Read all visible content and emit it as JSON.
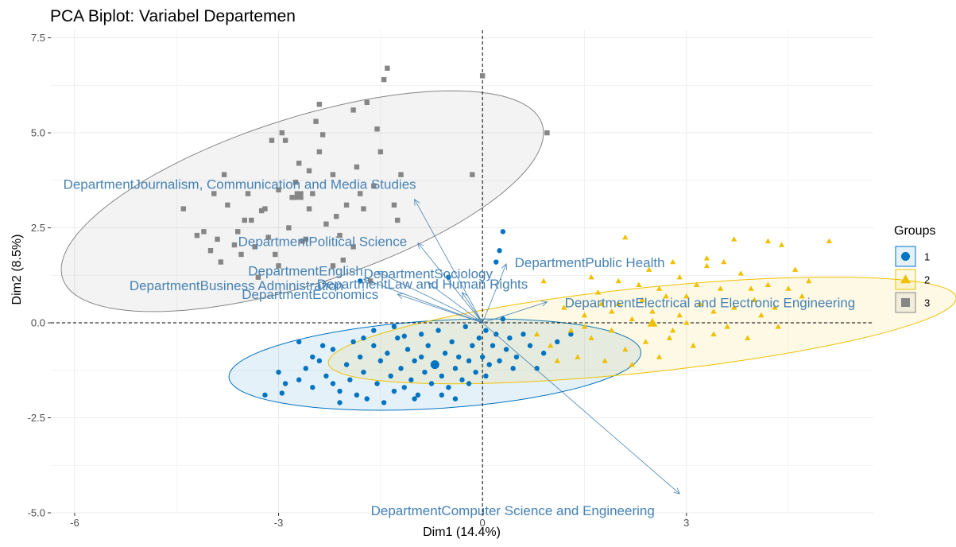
{
  "chart_data": {
    "type": "scatter",
    "title": "PCA Biplot: Variabel Departemen",
    "xlabel": "Dim1 (14.4%)",
    "ylabel": "Dim2 (8.5%)",
    "xlim": [
      -6.35,
      5.75
    ],
    "ylim": [
      -5.0,
      7.7
    ],
    "x_ticks": [
      -6,
      -3,
      0,
      3
    ],
    "x_tick_labels": [
      "-6",
      "-3",
      "0",
      "3"
    ],
    "y_ticks": [
      -5,
      -2.5,
      0,
      2.5,
      5,
      7.5
    ],
    "y_tick_labels": [
      "-5.0",
      "-2.5",
      "0.0",
      "2.5",
      "5.0",
      "7.5"
    ],
    "grid": true,
    "legend": {
      "title": "Groups",
      "position": "right",
      "entries": [
        {
          "label": "1",
          "shape": "circle",
          "color": "#0073c2"
        },
        {
          "label": "2",
          "shape": "triangle",
          "color": "#efc000"
        },
        {
          "label": "3",
          "shape": "square",
          "color": "#868686"
        }
      ]
    },
    "series": [
      {
        "name": "1",
        "color": "#0073c2",
        "shape": "circle",
        "centroid": [
          -0.7,
          -1.1
        ],
        "ellipse": {
          "cx": -0.7,
          "cy": -1.1,
          "rx": 3.05,
          "ry": 1.15,
          "angle_deg": 7
        },
        "points": [
          [
            -3.2,
            -1.9
          ],
          [
            -2.95,
            -1.85
          ],
          [
            -2.9,
            -1.6
          ],
          [
            -2.7,
            -1.5
          ],
          [
            -2.6,
            -1.2
          ],
          [
            -2.5,
            -1.7
          ],
          [
            -2.4,
            -1.0
          ],
          [
            -2.3,
            -1.4
          ],
          [
            -2.2,
            -0.7
          ],
          [
            -2.1,
            -1.8
          ],
          [
            -2.0,
            -1.1
          ],
          [
            -1.95,
            -1.5
          ],
          [
            -1.9,
            -0.5
          ],
          [
            -1.85,
            -1.9
          ],
          [
            -1.8,
            -0.9
          ],
          [
            -1.75,
            -1.3
          ],
          [
            -1.7,
            -2.0
          ],
          [
            -1.6,
            -0.6
          ],
          [
            -1.55,
            -1.6
          ],
          [
            -1.5,
            -1.0
          ],
          [
            -1.45,
            -2.1
          ],
          [
            -1.4,
            -0.8
          ],
          [
            -1.35,
            -1.4
          ],
          [
            -1.3,
            -1.8
          ],
          [
            -1.25,
            -0.4
          ],
          [
            -1.2,
            -1.2
          ],
          [
            -1.15,
            -1.7
          ],
          [
            -1.1,
            -0.7
          ],
          [
            -1.05,
            -1.5
          ],
          [
            -1.0,
            -1.0
          ],
          [
            -0.95,
            -1.9
          ],
          [
            -0.9,
            -0.3
          ],
          [
            -0.85,
            -1.3
          ],
          [
            -0.8,
            -0.6
          ],
          [
            -0.75,
            -1.6
          ],
          [
            -0.7,
            -1.1
          ],
          [
            -0.65,
            -0.2
          ],
          [
            -0.6,
            -1.4
          ],
          [
            -0.55,
            -0.8
          ],
          [
            -0.5,
            -1.7
          ],
          [
            -0.45,
            -0.5
          ],
          [
            -0.4,
            -1.2
          ],
          [
            -0.35,
            -0.9
          ],
          [
            -0.3,
            -1.5
          ],
          [
            -0.25,
            -0.1
          ],
          [
            -0.2,
            -1.0
          ],
          [
            -0.15,
            -0.6
          ],
          [
            -0.1,
            -1.3
          ],
          [
            -0.05,
            -0.4
          ],
          [
            0.0,
            -0.9
          ],
          [
            0.05,
            -0.2
          ],
          [
            0.1,
            -1.1
          ],
          [
            0.15,
            -0.6
          ],
          [
            0.2,
            -0.3
          ],
          [
            0.25,
            -1.0
          ],
          [
            0.3,
            0.1
          ],
          [
            0.35,
            -0.7
          ],
          [
            0.4,
            -0.4
          ],
          [
            0.5,
            -0.9
          ],
          [
            0.6,
            -0.3
          ],
          [
            0.7,
            -0.6
          ],
          [
            0.8,
            -1.2
          ],
          [
            0.9,
            -0.8
          ],
          [
            1.1,
            -0.5
          ],
          [
            1.3,
            -0.3
          ],
          [
            0.3,
            2.4
          ],
          [
            0.25,
            1.9
          ],
          [
            0.2,
            1.6
          ],
          [
            -0.5,
            1.2
          ],
          [
            -1.8,
            1.1
          ],
          [
            -2.1,
            -2.1
          ],
          [
            -2.5,
            -0.9
          ],
          [
            -2.7,
            -0.5
          ],
          [
            -1.6,
            -0.2
          ],
          [
            -1.3,
            -0.1
          ],
          [
            -0.9,
            -0.9
          ],
          [
            -0.6,
            -1.9
          ],
          [
            -0.4,
            -2.0
          ],
          [
            -1.0,
            -2.0
          ],
          [
            -2.2,
            -1.6
          ],
          [
            -0.2,
            -1.6
          ],
          [
            0.05,
            -1.4
          ],
          [
            -1.75,
            -0.4
          ],
          [
            -2.35,
            -0.6
          ],
          [
            -3.0,
            -1.3
          ],
          [
            -1.15,
            -0.35
          ],
          [
            0.45,
            -1.2
          ]
        ]
      },
      {
        "name": "2",
        "color": "#efc000",
        "shape": "triangle",
        "centroid": [
          2.5,
          0.0
        ],
        "ellipse": {
          "cx": 2.35,
          "cy": -0.2,
          "rx": 4.7,
          "ry": 1.1,
          "angle_deg": 11
        },
        "points": [
          [
            0.8,
            -0.3
          ],
          [
            1.0,
            -0.6
          ],
          [
            1.2,
            0.4
          ],
          [
            1.4,
            -0.9
          ],
          [
            1.5,
            0.2
          ],
          [
            1.6,
            -0.4
          ],
          [
            1.7,
            0.8
          ],
          [
            1.8,
            -1.0
          ],
          [
            1.9,
            -0.2
          ],
          [
            2.0,
            0.5
          ],
          [
            2.1,
            -0.7
          ],
          [
            2.2,
            0.1
          ],
          [
            2.3,
            1.0
          ],
          [
            2.4,
            -0.5
          ],
          [
            2.5,
            0.3
          ],
          [
            2.6,
            -0.9
          ],
          [
            2.7,
            0.7
          ],
          [
            2.8,
            -0.2
          ],
          [
            2.9,
            1.2
          ],
          [
            3.0,
            0.0
          ],
          [
            3.1,
            -0.6
          ],
          [
            3.2,
            0.5
          ],
          [
            3.3,
            1.5
          ],
          [
            3.4,
            -0.3
          ],
          [
            3.5,
            0.9
          ],
          [
            3.6,
            -0.1
          ],
          [
            3.7,
            0.4
          ],
          [
            3.8,
            1.3
          ],
          [
            3.9,
            -0.4
          ],
          [
            4.0,
            0.6
          ],
          [
            4.1,
            0.2
          ],
          [
            4.2,
            1.0
          ],
          [
            4.3,
            0.4
          ],
          [
            4.5,
            0.9
          ],
          [
            4.6,
            1.4
          ],
          [
            4.7,
            0.7
          ],
          [
            4.8,
            1.1
          ],
          [
            5.1,
            2.15
          ],
          [
            4.2,
            2.15
          ],
          [
            4.4,
            2.05
          ],
          [
            3.7,
            2.2
          ],
          [
            3.3,
            1.7
          ],
          [
            2.1,
            2.25
          ],
          [
            2.8,
            1.6
          ],
          [
            2.0,
            1.1
          ],
          [
            1.6,
            1.2
          ],
          [
            0.9,
            1.1
          ],
          [
            1.3,
            -0.2
          ],
          [
            2.2,
            -1.1
          ],
          [
            2.6,
            0.9
          ],
          [
            3.0,
            0.7
          ],
          [
            3.4,
            0.3
          ],
          [
            1.1,
            -1.0
          ],
          [
            1.5,
            -0.1
          ],
          [
            1.9,
            0.3
          ],
          [
            2.35,
            0.6
          ],
          [
            2.75,
            -0.4
          ],
          [
            3.15,
            1.0
          ],
          [
            3.55,
            1.6
          ],
          [
            3.95,
            0.9
          ],
          [
            4.35,
            -0.1
          ],
          [
            1.75,
            0.5
          ],
          [
            2.45,
            1.4
          ],
          [
            2.9,
            0.2
          ]
        ]
      },
      {
        "name": "3",
        "color": "#868686",
        "shape": "square",
        "centroid": [
          -2.7,
          3.35
        ],
        "ellipse": {
          "cx": -2.65,
          "cy": 3.2,
          "rx": 4.15,
          "ry": 1.95,
          "angle_deg": 36
        },
        "points": [
          [
            -4.4,
            3.0
          ],
          [
            -4.2,
            2.3
          ],
          [
            -4.1,
            2.4
          ],
          [
            -4.0,
            1.9
          ],
          [
            -3.95,
            3.4
          ],
          [
            -3.9,
            2.2
          ],
          [
            -3.85,
            1.6
          ],
          [
            -3.75,
            3.1
          ],
          [
            -3.6,
            2.4
          ],
          [
            -3.55,
            1.8
          ],
          [
            -3.45,
            3.4
          ],
          [
            -3.4,
            2.7
          ],
          [
            -3.35,
            2.0
          ],
          [
            -3.3,
            1.2
          ],
          [
            -3.2,
            3.0
          ],
          [
            -3.1,
            4.8
          ],
          [
            -3.05,
            1.8
          ],
          [
            -3.0,
            3.5
          ],
          [
            -2.9,
            4.8
          ],
          [
            -2.8,
            3.3
          ],
          [
            -2.75,
            3.7
          ],
          [
            -2.7,
            4.2
          ],
          [
            -2.6,
            2.2
          ],
          [
            -2.55,
            3.0
          ],
          [
            -2.5,
            3.4
          ],
          [
            -2.45,
            5.3
          ],
          [
            -2.4,
            4.5
          ],
          [
            -2.3,
            2.6
          ],
          [
            -2.2,
            3.9
          ],
          [
            -2.1,
            2.3
          ],
          [
            -2.0,
            3.1
          ],
          [
            -1.9,
            5.6
          ],
          [
            -1.8,
            3.4
          ],
          [
            -1.7,
            5.8
          ],
          [
            -1.6,
            3.6
          ],
          [
            -1.5,
            4.5
          ],
          [
            -1.45,
            6.4
          ],
          [
            -1.4,
            6.7
          ],
          [
            -1.3,
            3.1
          ],
          [
            -1.2,
            3.9
          ],
          [
            -3.0,
            1.5
          ],
          [
            -3.25,
            2.95
          ],
          [
            -2.85,
            2.5
          ],
          [
            0.0,
            6.5
          ],
          [
            0.95,
            5.0
          ],
          [
            -0.15,
            3.9
          ],
          [
            -2.15,
            2.8
          ],
          [
            -1.65,
            1.1
          ],
          [
            -2.65,
            2.15
          ],
          [
            -3.5,
            2.7
          ],
          [
            -2.2,
            1.5
          ],
          [
            -1.9,
            2.0
          ],
          [
            -3.8,
            3.9
          ],
          [
            -3.65,
            2.05
          ],
          [
            -2.95,
            5.0
          ],
          [
            -2.35,
            4.95
          ],
          [
            -1.85,
            4.1
          ],
          [
            -2.4,
            5.75
          ],
          [
            -1.55,
            5.1
          ],
          [
            -3.15,
            2.25
          ],
          [
            -2.05,
            1.65
          ],
          [
            -1.75,
            3.0
          ],
          [
            -1.25,
            2.7
          ],
          [
            -2.55,
            4.0
          ]
        ]
      }
    ],
    "variables": [
      {
        "label": "DepartmentJournalism, Communication and Media Studies",
        "end": [
          -1.0,
          3.25
        ]
      },
      {
        "label": "DepartmentPolitical Science",
        "end": [
          -0.95,
          2.1
        ]
      },
      {
        "label": "DepartmentPublic Health",
        "end": [
          0.35,
          1.55
        ]
      },
      {
        "label": "DepartmentEnglish",
        "end": [
          -1.55,
          1.35
        ]
      },
      {
        "label": "DepartmentSociology",
        "end": [
          -0.8,
          1.05
        ]
      },
      {
        "label": "DepartmentBusiness Administration",
        "end": [
          -1.75,
          1.15
        ]
      },
      {
        "label": "DepartmentElectrical and Electronic Engineering",
        "end": [
          0.95,
          0.55
        ]
      },
      {
        "label": "DepartmentEconomics",
        "end": [
          -1.25,
          0.75
        ]
      },
      {
        "label": "DepartmentLaw and Human Rights",
        "end": [
          -0.3,
          0.8
        ]
      },
      {
        "label": "DepartmentComputer Science and Engineering",
        "end": [
          2.9,
          -4.5
        ]
      }
    ]
  }
}
